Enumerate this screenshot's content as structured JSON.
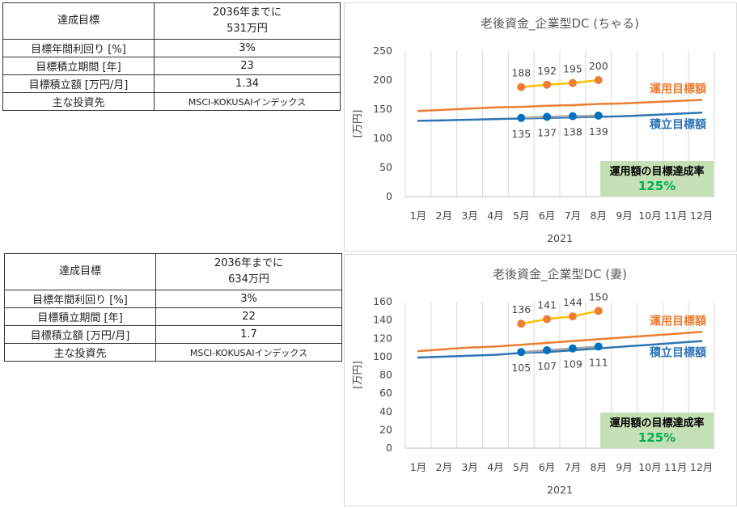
{
  "tables": [
    {
      "rows": [
        {
          "label": "達成目標",
          "value_line1": "2036年までに",
          "value_line2": "531万円"
        },
        {
          "label": "目標年間利回り [%]",
          "value": "3%"
        },
        {
          "label": "目標積立期間 [年]",
          "value": "23"
        },
        {
          "label": "目標積立額 [万円/月]",
          "value": "1.34"
        },
        {
          "label": "主な投資先",
          "value": "MSCI-KOKUSAIインデックス"
        }
      ]
    },
    {
      "rows": [
        {
          "label": "達成目標",
          "value_line1": "2036年までに",
          "value_line2": "634万円"
        },
        {
          "label": "目標年間利回り [%]",
          "value": "3%"
        },
        {
          "label": "目標積立期間 [年]",
          "value": "22"
        },
        {
          "label": "目標積立額 [万円/月]",
          "value": "1.7"
        },
        {
          "label": "主な投資先",
          "value": "MSCI-KOKUSAIインデックス"
        }
      ]
    }
  ],
  "chart_data": [
    {
      "type": "line",
      "title": "老後資金_企業型DC (ちゃる)",
      "ylabel": "[万円]",
      "xlabel": "2021",
      "categories": [
        "1月",
        "2月",
        "3月",
        "4月",
        "5月",
        "6月",
        "7月",
        "8月",
        "9月",
        "10月",
        "11月",
        "12月"
      ],
      "yticks": [
        0,
        50,
        100,
        150,
        200,
        250
      ],
      "ylim": [
        0,
        250
      ],
      "grid": "vertical",
      "series": [
        {
          "name": "運用目標額",
          "color": "#ed7d31",
          "values": [
            147,
            149,
            151,
            153,
            154,
            156,
            157,
            159,
            160,
            162,
            164,
            166
          ]
        },
        {
          "name": "積立目標額",
          "color": "#2e75b6",
          "values": [
            130,
            131,
            132,
            133,
            134,
            135,
            136,
            137,
            138,
            140,
            142,
            144
          ]
        },
        {
          "color": "#a5a5a5",
          "marker": "#0070c0",
          "labels_below": true,
          "values": [
            null,
            null,
            null,
            null,
            135,
            137,
            138,
            139,
            null,
            null,
            null,
            null
          ]
        },
        {
          "color": "#ffc000",
          "marker": "#ed7d31",
          "labels_above": true,
          "values": [
            null,
            null,
            null,
            null,
            188,
            192,
            195,
            200,
            null,
            null,
            null,
            null
          ]
        }
      ],
      "rate_box": {
        "line1": "運用額の目標達成率",
        "line2": "125%",
        "color": "#c5e0b4"
      }
    },
    {
      "type": "line",
      "title": "老後資金_企業型DC (妻)",
      "ylabel": "[万円]",
      "xlabel": "2021",
      "categories": [
        "1月",
        "2月",
        "3月",
        "4月",
        "5月",
        "6月",
        "7月",
        "8月",
        "9月",
        "10月",
        "11月",
        "12月"
      ],
      "yticks": [
        0,
        20,
        40,
        60,
        80,
        100,
        120,
        140,
        160
      ],
      "ylim": [
        0,
        160
      ],
      "grid": "vertical",
      "series": [
        {
          "name": "運用目標額",
          "color": "#ed7d31",
          "values": [
            106,
            108,
            110,
            111,
            113,
            115,
            117,
            119,
            121,
            123,
            125,
            127
          ]
        },
        {
          "name": "積立目標額",
          "color": "#2e75b6",
          "values": [
            99,
            100,
            101,
            102,
            104,
            105,
            107,
            109,
            111,
            113,
            115,
            117
          ]
        },
        {
          "color": "#a5a5a5",
          "marker": "#0070c0",
          "labels_below": true,
          "values": [
            null,
            null,
            null,
            null,
            105,
            107,
            109,
            111,
            null,
            null,
            null,
            null
          ]
        },
        {
          "color": "#ffc000",
          "marker": "#ed7d31",
          "labels_above": true,
          "values": [
            null,
            null,
            null,
            null,
            136,
            141,
            144,
            150,
            null,
            null,
            null,
            null
          ]
        }
      ],
      "rate_box": {
        "line1": "運用額の目標達成率",
        "line2": "125%",
        "color": "#c5e0b4"
      }
    }
  ]
}
